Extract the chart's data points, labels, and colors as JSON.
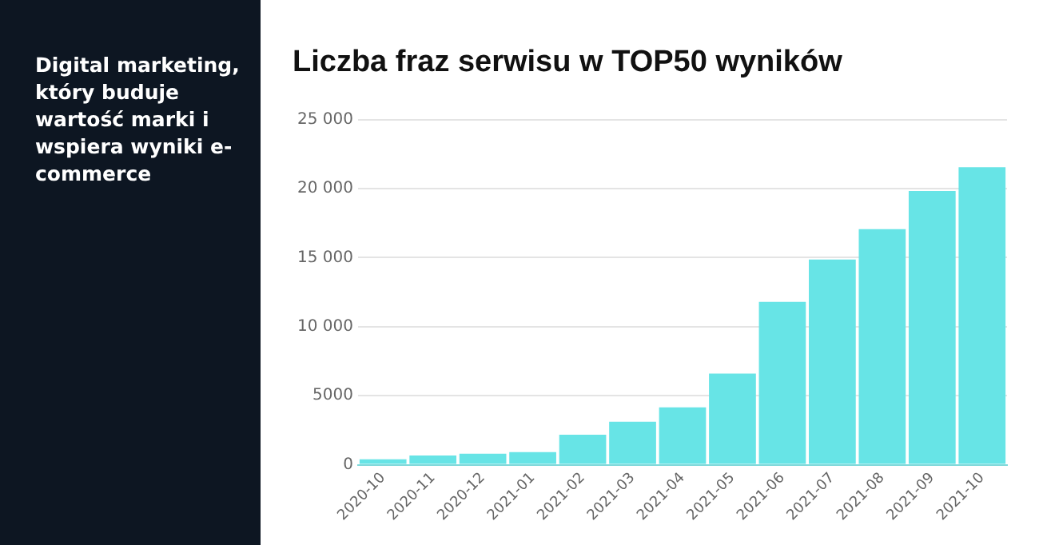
{
  "chart_data": {
    "type": "bar",
    "title": "Liczba fraz serwisu w TOP50 wyników",
    "annotations": [
      "Digital marketing, który buduje wartość marki i wspiera wyniki e-commerce"
    ],
    "categories": [
      "2020-10",
      "2020-11",
      "2020-12",
      "2021-01",
      "2021-02",
      "2021-03",
      "2021-04",
      "2021-05",
      "2021-06",
      "2021-07",
      "2021-08",
      "2021-09",
      "2021-10"
    ],
    "values": [
      400,
      670,
      800,
      920,
      2180,
      3110,
      4160,
      6600,
      11800,
      14870,
      17060,
      19830,
      21550
    ],
    "color": "#67e4e6",
    "ylim": [
      0,
      25000
    ],
    "yticks": [
      0,
      5000,
      {
        "value": 10000,
        "label": "10 000"
      },
      {
        "value": 15000,
        "label": "15 000"
      },
      {
        "value": 20000,
        "label": "20 000"
      },
      {
        "value": 25000,
        "label": "25 000"
      }
    ],
    "grid": "y",
    "legend": false
  }
}
